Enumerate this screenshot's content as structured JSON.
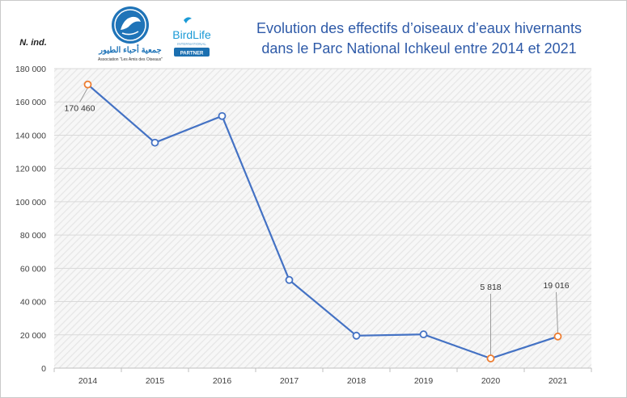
{
  "logos": {
    "aao_arabic": "جمعية أحباء الطيور",
    "aao_name": "Association \"Les Amis des Oiseaux\"",
    "birdlife_name": "BirdLife",
    "birdlife_sub": "INTERNATIONAL",
    "birdlife_badge": "PARTNER"
  },
  "colors": {
    "line": "#4472c4",
    "marker_highlight": "#ed7d31",
    "title": "#2e5aa8",
    "aao_blue": "#1f74b8",
    "birdlife_badge": "#1b6fb0"
  },
  "chart_data": {
    "type": "line",
    "title_lines": [
      "Evolution des effectifs d’oiseaux d’eaux hivernants",
      "dans le Parc National Ichkeul entre 2014 et 2021"
    ],
    "ylabel": "N. ind.",
    "xlabel": "",
    "categories": [
      "2014",
      "2015",
      "2016",
      "2017",
      "2018",
      "2019",
      "2020",
      "2021"
    ],
    "values": [
      170460,
      135500,
      151500,
      53000,
      19500,
      20300,
      5818,
      19016
    ],
    "highlighted": [
      0,
      6,
      7
    ],
    "ylim": [
      0,
      180000
    ],
    "yticks": [
      0,
      20000,
      40000,
      60000,
      80000,
      100000,
      120000,
      140000,
      160000,
      180000
    ],
    "ytick_labels": [
      "0",
      "20 000",
      "40 000",
      "60 000",
      "80 000",
      "100 000",
      "120 000",
      "140 000",
      "160 000",
      "180 000"
    ],
    "annotations": [
      {
        "index": 0,
        "text": "170 460"
      },
      {
        "index": 6,
        "text": "5 818"
      },
      {
        "index": 7,
        "text": "19 016"
      }
    ],
    "grid": true,
    "background": "hatched"
  }
}
